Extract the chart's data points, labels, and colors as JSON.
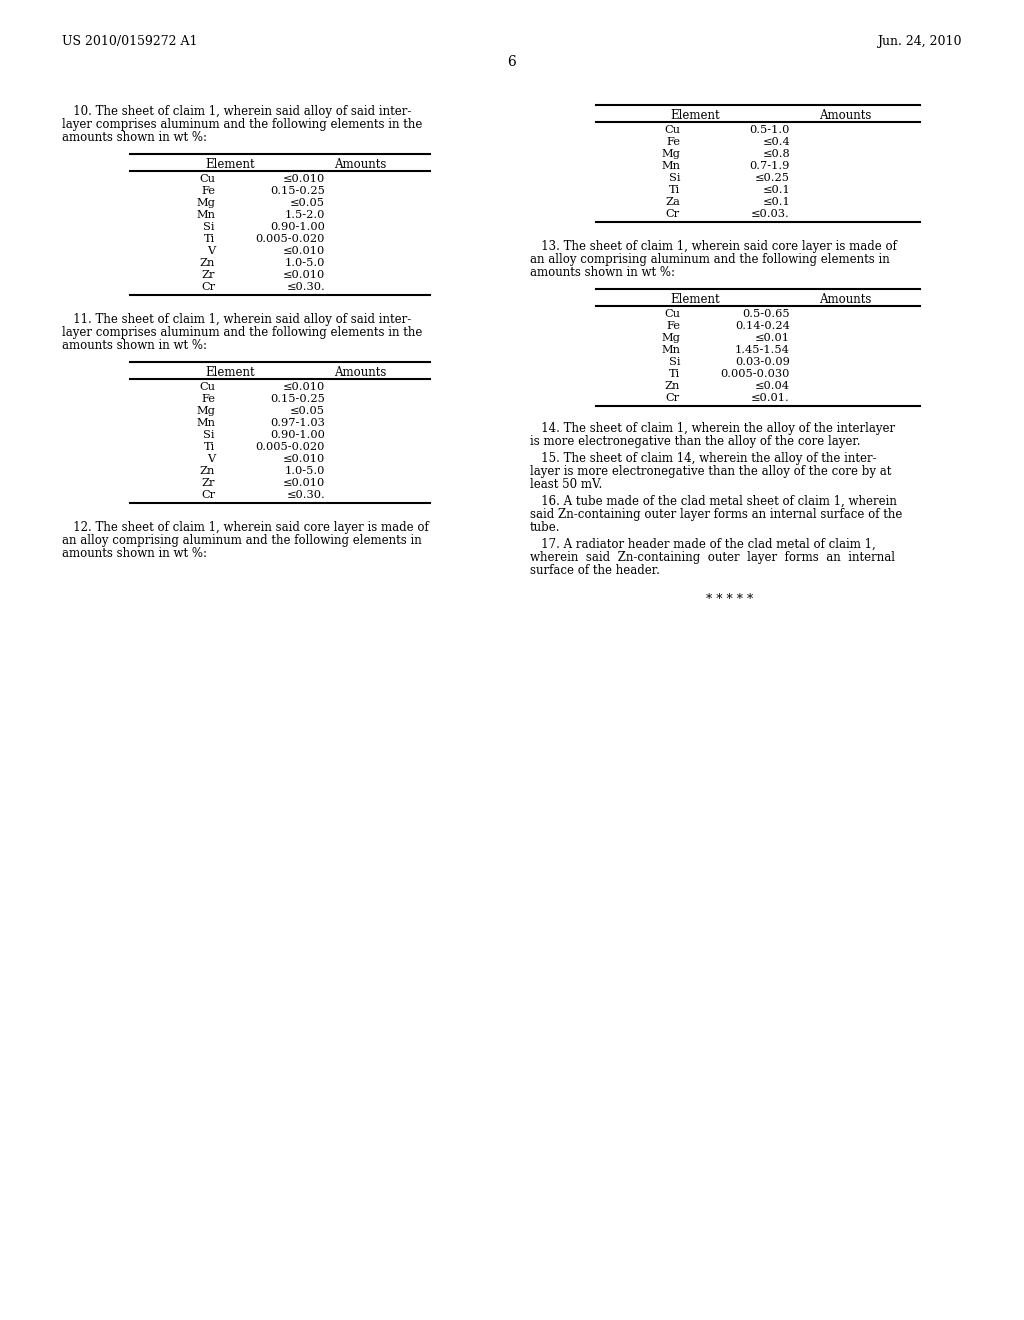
{
  "header_left": "US 2010/0159272 A1",
  "header_right": "Jun. 24, 2010",
  "page_number": "6",
  "background_color": "#ffffff",
  "text_color": "#000000",
  "claim10_text": [
    "   10. The sheet of claim 1, wherein said alloy of said inter-",
    "layer comprises aluminum and the following elements in the",
    "amounts shown in wt %:"
  ],
  "claim10_elements": [
    "Cu",
    "Fe",
    "Mg",
    "Mn",
    "Si",
    "Ti",
    "V",
    "Zn",
    "Zr",
    "Cr"
  ],
  "claim10_amounts": [
    "≤0.010",
    "0.15-0.25",
    "≤0.05",
    "1.5-2.0",
    "0.90-1.00",
    "0.005-0.020",
    "≤0.010",
    "1.0-5.0",
    "≤0.010",
    "≤0.30."
  ],
  "claim11_text": [
    "   11. The sheet of claim 1, wherein said alloy of said inter-",
    "layer comprises aluminum and the following elements in the",
    "amounts shown in wt %:"
  ],
  "claim11_elements": [
    "Cu",
    "Fe",
    "Mg",
    "Mn",
    "Si",
    "Ti",
    "V",
    "Zn",
    "Zr",
    "Cr"
  ],
  "claim11_amounts": [
    "≤0.010",
    "0.15-0.25",
    "≤0.05",
    "0.97-1.03",
    "0.90-1.00",
    "0.005-0.020",
    "≤0.010",
    "1.0-5.0",
    "≤0.010",
    "≤0.30."
  ],
  "claim12_text": [
    "   12. The sheet of claim 1, wherein said core layer is made of",
    "an alloy comprising aluminum and the following elements in",
    "amounts shown in wt %:"
  ],
  "claim12_right_text": [
    "   12. The sheet of claim 1, wherein said core layer is made of",
    "an alloy comprising aluminum and the following elements in",
    "amounts shown in wt %:"
  ],
  "right_col_claim_header": "Element",
  "right_col_amount_header": "Amounts",
  "table12_elements": [
    "Cu",
    "Fe",
    "Mg",
    "Mn",
    "Si",
    "Ti",
    "Za",
    "Cr"
  ],
  "table12_amounts": [
    "0.5-1.0",
    "≤0.4",
    "≤0.8",
    "0.7-1.9",
    "≤0.25",
    "≤0.1",
    "≤0.1",
    "≤0.03."
  ],
  "claim13_text": [
    "   13. The sheet of claim 1, wherein said core layer is made of",
    "an alloy comprising aluminum and the following elements in",
    "amounts shown in wt %:"
  ],
  "claim13_elements": [
    "Cu",
    "Fe",
    "Mg",
    "Mn",
    "Si",
    "Ti",
    "Zn",
    "Cr"
  ],
  "claim13_amounts": [
    "0.5-0.65",
    "0.14-0.24",
    "≤0.01",
    "1.45-1.54",
    "0.03-0.09",
    "0.005-0.030",
    "≤0.04",
    "≤0.01."
  ],
  "claim14_text": "   14. The sheet of claim 1, wherein the alloy of the interlayer is more electronegative than the alloy of the core layer.",
  "claim15_text": "   15. The sheet of claim 14, wherein the alloy of the inter-layer is more electronegative than the alloy of the core by at least 50 mV.",
  "claim16_text": "   16. A tube made of the clad metal sheet of claim 1, wherein said Zn-containing outer layer forms an internal surface of the tube.",
  "claim17_text": "   17. A radiator header made of the clad metal of claim 1, wherein  said  Zn-containing  outer  layer  forms  an  internal surface of the header.",
  "end_marks": "* * * * *"
}
